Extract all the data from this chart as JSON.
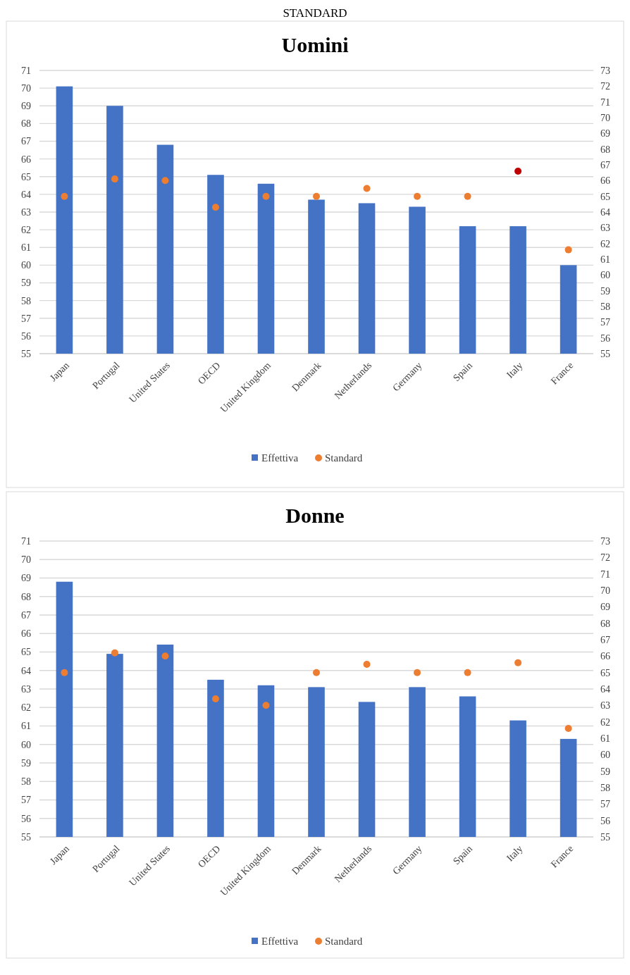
{
  "chart_data": [
    {
      "type": "bar",
      "title": "Uomini",
      "annotations": [
        "STANDARD"
      ],
      "categories": [
        "Japan",
        "Portugal",
        "United States",
        "OECD",
        "United Kingdom",
        "Denmark",
        "Netherlands",
        "Germany",
        "Spain",
        "Italy",
        "France"
      ],
      "series": [
        {
          "name": "Effettiva",
          "color": "#4472c4",
          "values": [
            70.1,
            69.0,
            66.8,
            65.1,
            64.6,
            63.7,
            63.5,
            63.3,
            62.2,
            62.2,
            60.0
          ]
        },
        {
          "name": "Standard",
          "type": "scatter",
          "axis": "y2",
          "color": "#ed7d31",
          "colors": [
            "#ed7d31",
            "#ed7d31",
            "#ed7d31",
            "#ed7d31",
            "#ed7d31",
            "#ed7d31",
            "#ed7d31",
            "#ed7d31",
            "#ed7d31",
            "#c00000",
            "#ed7d31"
          ],
          "values": [
            65.0,
            66.1,
            66.0,
            64.3,
            65.0,
            65.0,
            65.5,
            65.0,
            65.0,
            66.6,
            61.6
          ]
        }
      ],
      "ylim": [
        55,
        71
      ],
      "yticks": [
        55,
        56,
        57,
        58,
        59,
        60,
        61,
        62,
        63,
        64,
        65,
        66,
        67,
        68,
        69,
        70,
        71
      ],
      "y2lim": [
        55,
        73
      ],
      "y2ticks": [
        55,
        56,
        57,
        58,
        59,
        60,
        61,
        62,
        63,
        64,
        65,
        66,
        67,
        68,
        69,
        70,
        71,
        72,
        73
      ],
      "grid": "y",
      "legend": "bottom",
      "marker": "circle"
    },
    {
      "type": "bar",
      "title": "Donne",
      "categories": [
        "Japan",
        "Portugal",
        "United States",
        "OECD",
        "United Kingdom",
        "Denmark",
        "Netherlands",
        "Germany",
        "Spain",
        "Italy",
        "France"
      ],
      "series": [
        {
          "name": "Effettiva",
          "color": "#4472c4",
          "values": [
            68.8,
            64.9,
            65.4,
            63.5,
            63.2,
            63.1,
            62.3,
            63.1,
            62.6,
            61.3,
            60.3
          ]
        },
        {
          "name": "Standard",
          "type": "scatter",
          "axis": "y2",
          "color": "#ed7d31",
          "values": [
            65.0,
            66.2,
            66.0,
            63.4,
            63.0,
            65.0,
            65.5,
            65.0,
            65.0,
            65.6,
            61.6
          ]
        }
      ],
      "ylim": [
        55,
        71
      ],
      "yticks": [
        55,
        56,
        57,
        58,
        59,
        60,
        61,
        62,
        63,
        64,
        65,
        66,
        67,
        68,
        69,
        70,
        71
      ],
      "y2lim": [
        55,
        73
      ],
      "y2ticks": [
        55,
        56,
        57,
        58,
        59,
        60,
        61,
        62,
        63,
        64,
        65,
        66,
        67,
        68,
        69,
        70,
        71,
        72,
        73
      ],
      "grid": "y",
      "legend": "bottom",
      "marker": "circle"
    }
  ]
}
